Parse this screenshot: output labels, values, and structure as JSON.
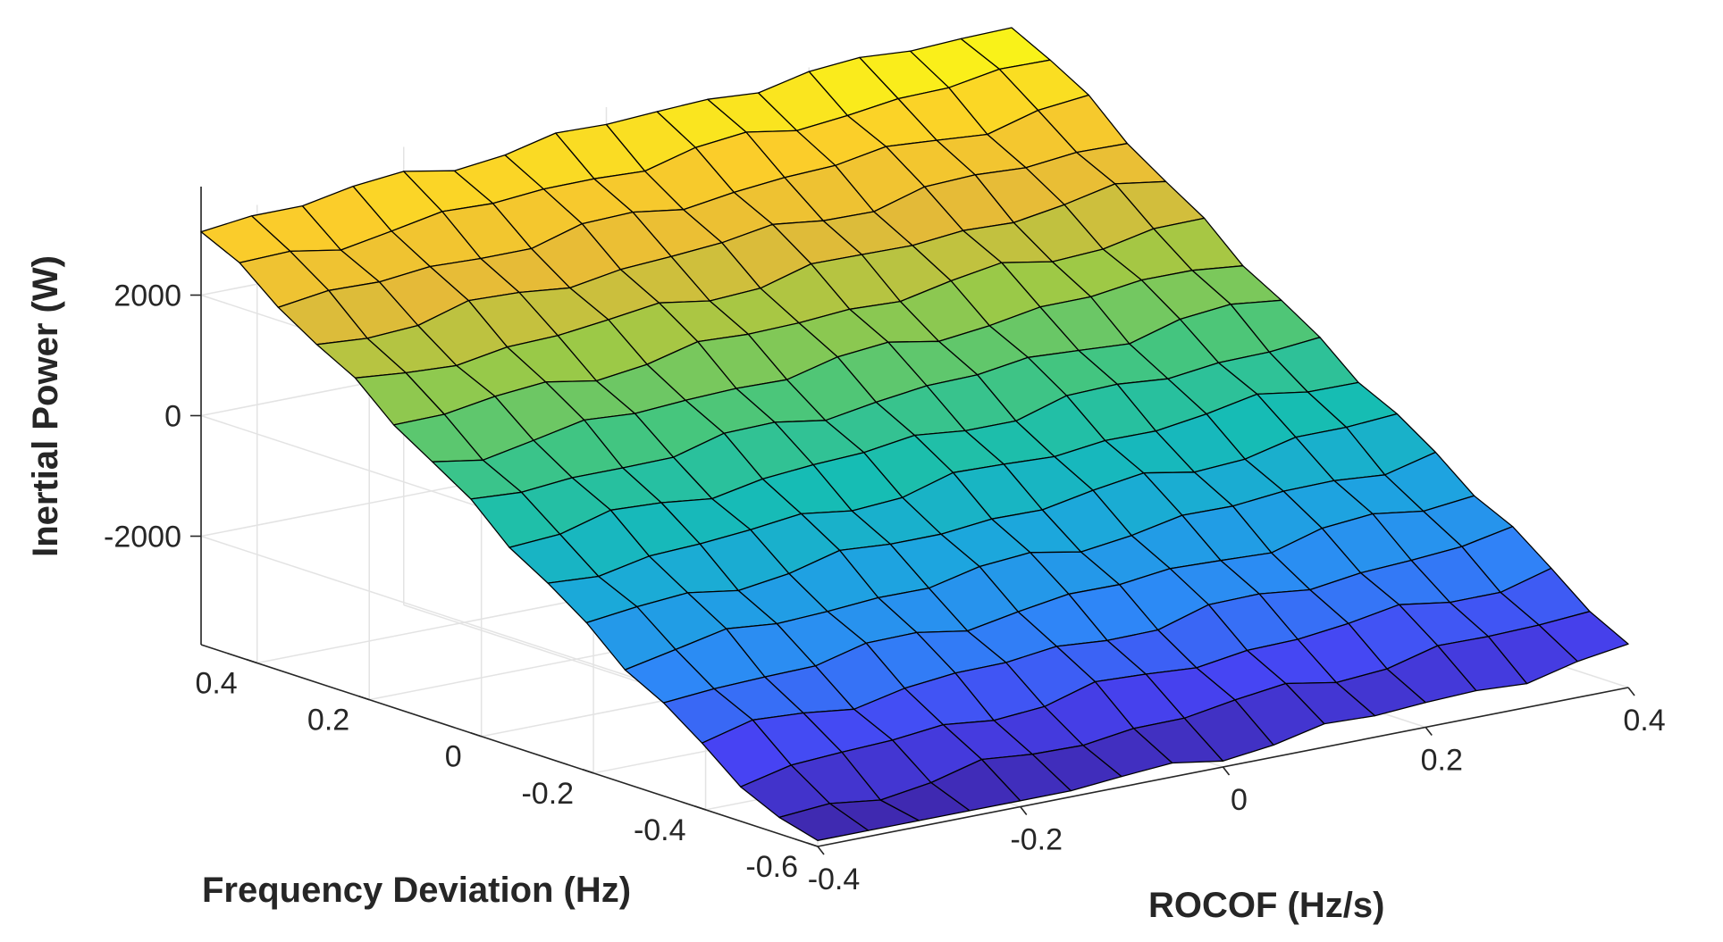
{
  "chart_data": {
    "type": "surface",
    "title": "",
    "xlabel": "ROCOF (Hz/s)",
    "ylabel": "Frequency Deviation (Hz)",
    "zlabel": "Inertial Power (W)",
    "xlim": [
      -0.4,
      0.4
    ],
    "ylim": [
      -0.6,
      0.5
    ],
    "zlim": [
      -3800,
      3800
    ],
    "xticks": [
      -0.4,
      -0.2,
      0,
      0.2,
      0.4
    ],
    "xtick_labels": [
      "-0.4",
      "-0.2",
      "0",
      "0.2",
      "0.4"
    ],
    "yticks": [
      -0.6,
      -0.4,
      -0.2,
      0,
      0.2,
      0.4
    ],
    "ytick_labels": [
      "-0.6",
      "-0.4",
      "-0.2",
      "0",
      "0.2",
      "0.4"
    ],
    "zticks": [
      -2000,
      0,
      2000
    ],
    "ztick_labels": [
      "-2000",
      "0",
      "2000"
    ],
    "grid": true,
    "colormap": "parula",
    "colormap_stops": [
      "#3e26a8",
      "#4743f3",
      "#2e87f7",
      "#1ca6de",
      "#16bdb3",
      "#47c67c",
      "#9dc946",
      "#e5ba38",
      "#fbcd2a",
      "#f9fb15"
    ],
    "edge_color": "#000000",
    "surface": {
      "x_range": [
        -0.4,
        0.4
      ],
      "y_range": [
        -0.6,
        0.5
      ],
      "nx": 16,
      "ny": 16,
      "z_model": "Inertial Power increases linearly with Frequency Deviation and slightly with ROCOF",
      "z_at_y_min": -3600,
      "z_at_y_max": 3500,
      "z_per_unit_x": 1000,
      "z_min": -3700,
      "z_max": 3800
    }
  }
}
